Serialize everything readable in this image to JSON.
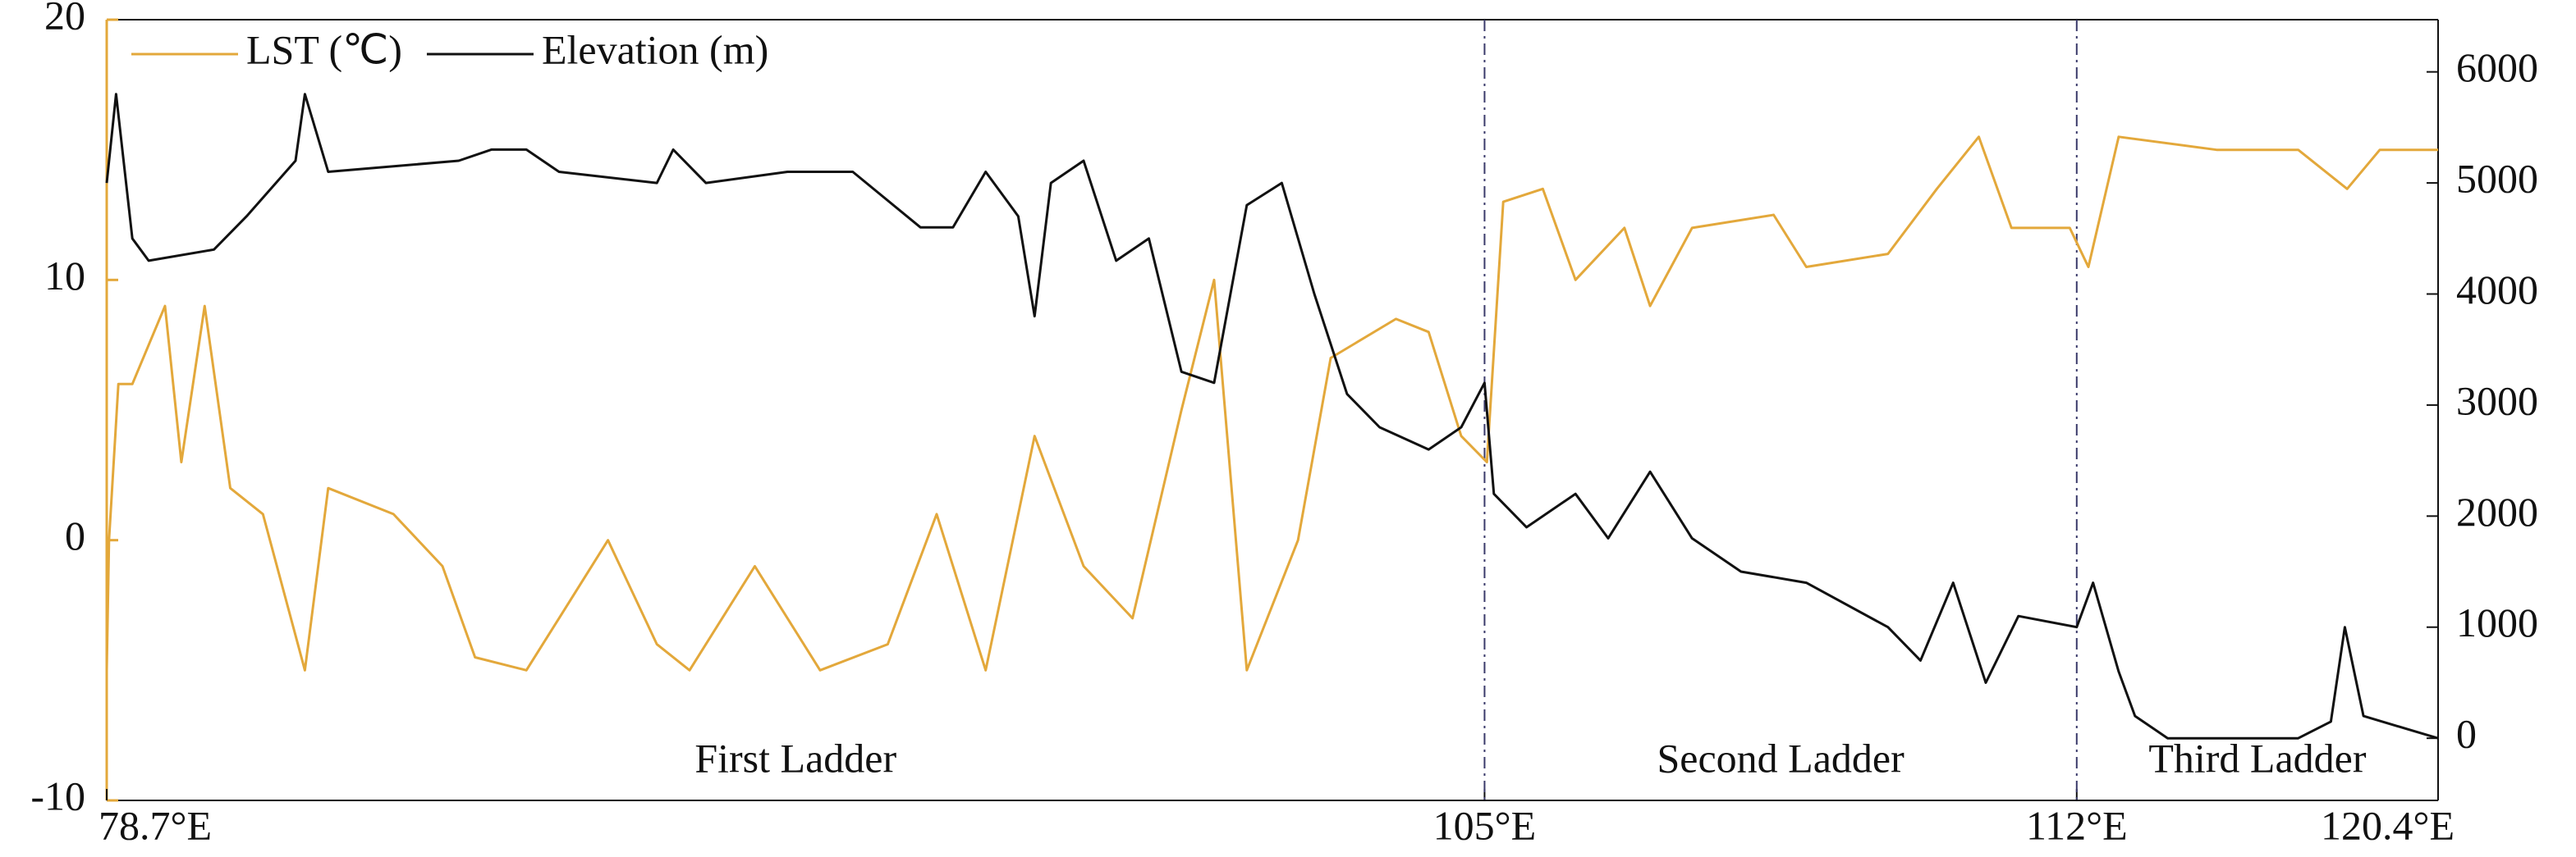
{
  "chart_data": {
    "type": "line",
    "xlim": [
      0,
      100
    ],
    "xticks": [
      {
        "value": 0,
        "label": "78.7°E"
      },
      {
        "value": 59.1,
        "label": "105°E"
      },
      {
        "value": 84.5,
        "label": "112°E"
      },
      {
        "value": 100,
        "label": "120.4°E"
      }
    ],
    "ylim": [
      -10,
      20
    ],
    "yticks": [
      -10,
      0,
      10,
      20
    ],
    "y2lim": [
      -560,
      6470
    ],
    "y2ticks": [
      0,
      1000,
      2000,
      3000,
      4000,
      5000,
      6000
    ],
    "annotations": [
      "First Ladder",
      "Second Ladder",
      "Third Ladder"
    ],
    "legend": "top-left",
    "series": [
      {
        "name": "LST (℃)",
        "color": "#e3a83b",
        "axis": "y",
        "x": [
          0,
          0.1,
          0.5,
          1.1,
          2.5,
          3.2,
          4.2,
          5.3,
          6.7,
          8.5,
          9.5,
          12.3,
          14.4,
          15.8,
          18,
          19.4,
          21.5,
          23.6,
          25,
          27.8,
          30.6,
          33.5,
          35.6,
          37.7,
          39.8,
          41.9,
          44,
          46.1,
          47.5,
          48.9,
          51.1,
          52.5,
          55.3,
          56.7,
          58.1,
          59.2,
          59.9,
          61.6,
          63,
          65.1,
          66.2,
          68,
          71.5,
          72.9,
          76.4,
          78.5,
          80.3,
          81.7,
          84.2,
          85,
          86.3,
          90.5,
          94,
          96.1,
          97.5,
          100
        ],
        "values": [
          -5,
          0,
          6,
          6,
          9,
          3,
          9,
          2,
          1,
          -5,
          2,
          1,
          -1,
          -4.5,
          -5,
          -3,
          0,
          -4,
          -5,
          -1,
          -5,
          -4,
          1,
          -5,
          4,
          -1,
          -3,
          5,
          10,
          -5,
          0,
          7,
          8.5,
          8,
          4,
          3,
          13,
          13.5,
          10,
          12,
          9,
          12,
          12.5,
          10.5,
          11,
          13.5,
          15.5,
          12,
          12,
          10.5,
          15.5,
          15,
          15,
          13.5,
          15,
          15
        ]
      },
      {
        "name": "Elevation (m)",
        "color": "#111111",
        "axis": "y2",
        "x": [
          0,
          0.4,
          1.1,
          1.8,
          4.6,
          6,
          8.1,
          8.5,
          9.5,
          15.1,
          16.5,
          18,
          19.4,
          23.6,
          24.3,
          25.7,
          29.2,
          32,
          34.9,
          36.3,
          37.7,
          39.1,
          39.8,
          40.5,
          41.9,
          43.3,
          44.7,
          46.1,
          47.5,
          48.9,
          50.4,
          51.8,
          53.2,
          54.6,
          56.7,
          58.1,
          59.1,
          59.5,
          60.9,
          63,
          64.4,
          66.2,
          68,
          70.1,
          72.9,
          76.4,
          77.8,
          79.2,
          80.6,
          82,
          84.5,
          85.2,
          86.3,
          87,
          88.4,
          94,
          95.4,
          96,
          96.8,
          100
        ],
        "values": [
          5000,
          5800,
          4500,
          4300,
          4400,
          4700,
          5200,
          5800,
          5100,
          5200,
          5300,
          5300,
          5100,
          5000,
          5300,
          5000,
          5100,
          5100,
          4600,
          4600,
          5100,
          4700,
          3800,
          5000,
          5200,
          4300,
          4500,
          3300,
          3200,
          4800,
          5000,
          4000,
          3100,
          2800,
          2600,
          2800,
          3200,
          2200,
          1900,
          2200,
          1800,
          2400,
          1800,
          1500,
          1400,
          1000,
          700,
          1400,
          500,
          1100,
          1000,
          1400,
          600,
          200,
          0,
          0,
          150,
          1000,
          200,
          0
        ]
      }
    ]
  }
}
